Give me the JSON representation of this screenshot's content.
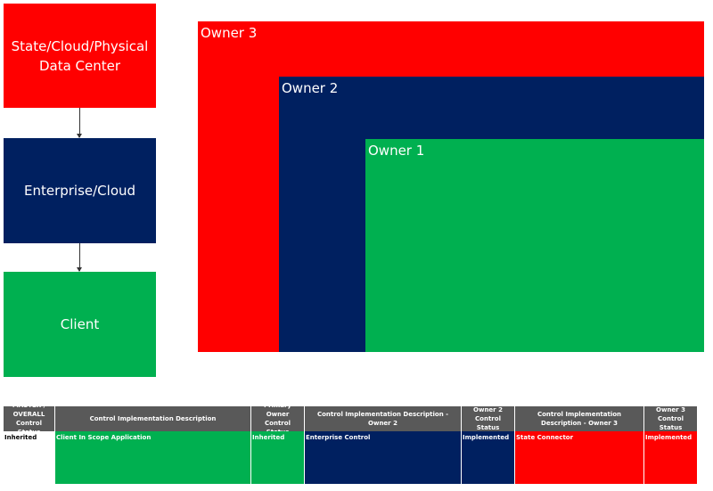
{
  "hierarchy": {
    "boxes": [
      {
        "label": "State/Cloud/Physical Data Center"
      },
      {
        "label": "Enterprise/Cloud"
      },
      {
        "label": "Client"
      }
    ]
  },
  "ownership": {
    "regions": [
      {
        "label": "Owner 3"
      },
      {
        "label": "Owner 2"
      },
      {
        "label": "Owner 1"
      }
    ]
  },
  "table": {
    "headers": [
      "MASTER / OVERALL Control Status",
      "Control Implementation Description",
      "Primary Owner Control Status",
      "Control Implementation Description - Owner 2",
      "Owner 2 Control Status",
      "Control Implementation Description - Owner 3",
      "Owner 3 Control Status"
    ],
    "rows": [
      [
        "Inherited",
        "Client In Scope Application",
        "Inherited",
        "Enterprise Control",
        "Implemented",
        "State Connector",
        "Implemented"
      ]
    ]
  }
}
